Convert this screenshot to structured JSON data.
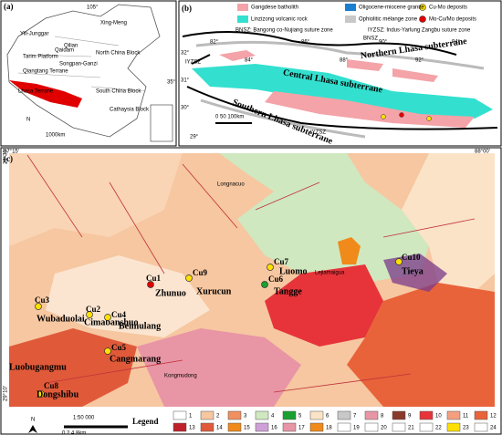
{
  "panel_a": {
    "label": "(a)",
    "lon": "105°",
    "lat": "35°",
    "regions": [
      "Yili-Junggar",
      "Xing-Meng",
      "Tarim Platform",
      "Qilian",
      "Qaidam",
      "North China Block",
      "Songpan-Ganzi",
      "Qiangtang Terrane",
      "Lhasa Terrane",
      "South China Block",
      "Cathaysia Block"
    ],
    "north": "N",
    "scale": "1000km"
  },
  "panel_b": {
    "label": "(b)",
    "legend": [
      "Gangdese batholith",
      "Oligocene-miocene granite",
      "Cu-Mo deposits",
      "Linzizong volcanic rock",
      "Ophiolitic mélange zone",
      "Mo-Cu/Mo deposits"
    ],
    "notes": [
      "BNSZ: Bangong co-Nujiang suture zone",
      "IYZSZ: Indus-Yarlung Zangbu suture zone"
    ],
    "subterranes": [
      "Northern Lhasa subterrane",
      "Central Lhasa subterrane",
      "Southern Lhasa subterrane"
    ],
    "sutures": [
      "BNSZ",
      "IYZSZ",
      "IYZSZ"
    ],
    "scale": "0 50 100km",
    "lon_ticks": [
      "82°",
      "84°",
      "86°",
      "88°",
      "90°",
      "92°",
      "94°"
    ],
    "lat_ticks": [
      "32°",
      "31°",
      "30°",
      "29°"
    ]
  },
  "panel_c": {
    "label": "(c)",
    "corners": [
      "87°15'",
      "88°00'",
      "29°30'",
      "29°10'"
    ],
    "deposits": [
      {
        "code": "Cu1",
        "name": "Zhunuo"
      },
      {
        "code": "Cu2",
        "name": "Cimabanshuo"
      },
      {
        "code": "Cu3",
        "name": "Wubaduolai"
      },
      {
        "code": "Cu4",
        "name": "Beimulang"
      },
      {
        "code": "Cu5",
        "name": "Cangmarang"
      },
      {
        "code": "Cu6",
        "name": "Tangge"
      },
      {
        "code": "Cu7",
        "name": "Luomo"
      },
      {
        "code": "Cu8",
        "name": "Dongshibu"
      },
      {
        "code": "Cu9",
        "name": "Xurucun"
      },
      {
        "code": "Cu10",
        "name": "Tieya"
      }
    ],
    "places": [
      "Luobugangmu",
      "Kongmudong",
      "Lejiamaigua",
      "Longnacuo"
    ],
    "scale_ratio": "1:50 000",
    "scale_bar": "0 2 4 8km",
    "north": "N",
    "legend_title": "Legend",
    "legend_items": [
      1,
      2,
      3,
      4,
      5,
      6,
      7,
      8,
      9,
      10,
      11,
      12,
      13,
      14,
      15,
      16,
      17,
      18,
      19,
      20,
      21,
      22,
      23,
      24
    ]
  }
}
